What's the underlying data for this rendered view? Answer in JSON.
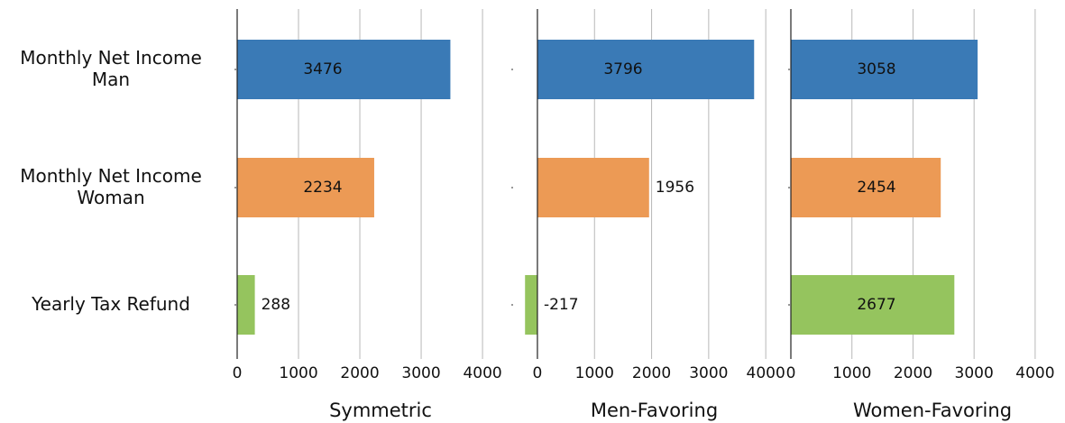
{
  "chart_data": [
    {
      "type": "barh",
      "categories": [
        "Monthly Net Income\nMan",
        "Monthly Net Income\nWoman",
        "Yearly Tax Refund"
      ],
      "values": [
        3476,
        2234,
        288
      ],
      "colors": [
        "#3a7ab6",
        "#ec9a55",
        "#95c45e"
      ],
      "xlim": [
        0,
        4440
      ],
      "xticks": [
        0,
        1000,
        2000,
        3000,
        4000
      ],
      "xlabel": "Symmetric",
      "grid": true
    },
    {
      "type": "barh",
      "values": [
        3796,
        1956,
        -217
      ],
      "colors": [
        "#3a7ab6",
        "#ec9a55",
        "#95c45e"
      ],
      "xlim": [
        -410,
        4250
      ],
      "xticks": [
        0,
        1000,
        2000,
        3000,
        4000
      ],
      "xlabel": "Men-Favoring",
      "grid": true
    },
    {
      "type": "barh",
      "values": [
        3058,
        2454,
        2677
      ],
      "colors": [
        "#3a7ab6",
        "#ec9a55",
        "#95c45e"
      ],
      "xlim": [
        0,
        4400
      ],
      "xticks": [
        0,
        1000,
        2000,
        3000,
        4000
      ],
      "xlabel": "Women-Favoring",
      "grid": true
    }
  ]
}
